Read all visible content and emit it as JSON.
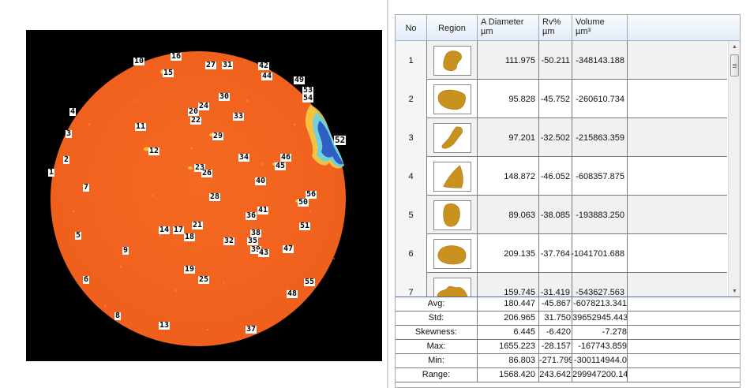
{
  "image_labels": [
    "1",
    "2",
    "3",
    "4",
    "5",
    "6",
    "7",
    "8",
    "9",
    "10",
    "11",
    "12",
    "13",
    "14",
    "15",
    "16",
    "17",
    "18",
    "19",
    "20",
    "21",
    "22",
    "23",
    "24",
    "25",
    "26",
    "27",
    "28",
    "29",
    "30",
    "31",
    "32",
    "33",
    "34",
    "35",
    "36",
    "37",
    "38",
    "39",
    "40",
    "41",
    "42",
    "43",
    "44",
    "45",
    "46",
    "47",
    "48",
    "49",
    "50",
    "51",
    "52",
    "53",
    "54",
    "55",
    "56"
  ],
  "table": {
    "headers": {
      "no": "No",
      "region": "Region",
      "diameter": "A Diameter",
      "diameter_unit": "µm",
      "rv": "Rv%",
      "rv_unit": "µm",
      "volume": "Volume",
      "volume_unit": "µm³"
    },
    "rows": [
      {
        "no": "1",
        "region_shape": "blob-1",
        "diameter": "111.975",
        "rv": "-50.211",
        "volume": "-348143.188"
      },
      {
        "no": "2",
        "region_shape": "blob-2",
        "diameter": "95.828",
        "rv": "-45.752",
        "volume": "-260610.734"
      },
      {
        "no": "3",
        "region_shape": "blob-3",
        "diameter": "97.201",
        "rv": "-32.502",
        "volume": "-215863.359"
      },
      {
        "no": "4",
        "region_shape": "blob-4",
        "diameter": "148.872",
        "rv": "-46.052",
        "volume": "-608357.875"
      },
      {
        "no": "5",
        "region_shape": "blob-5",
        "diameter": "89.063",
        "rv": "-38.085",
        "volume": "-193883.250"
      },
      {
        "no": "6",
        "region_shape": "blob-6",
        "diameter": "209.135",
        "rv": "-37.764",
        "volume": "-1041701.688"
      },
      {
        "no": "7",
        "region_shape": "blob-7",
        "diameter": "159.745",
        "rv": "-31.419",
        "volume": "-543627.563"
      }
    ],
    "stats": [
      {
        "label": "Avg:",
        "diameter": "180.447",
        "rv": "-45.867",
        "volume": "-6078213.341"
      },
      {
        "label": "Std:",
        "diameter": "206.965",
        "rv": "31.750",
        "volume": "39652945.443"
      },
      {
        "label": "Skewness:",
        "diameter": "6.445",
        "rv": "-6.420",
        "volume": "-7.278"
      },
      {
        "label": "Max:",
        "diameter": "1655.223",
        "rv": "-28.157",
        "volume": "-167743.859"
      },
      {
        "label": "Min:",
        "diameter": "86.803",
        "rv": "-271.799",
        "volume": "-300114944.0"
      },
      {
        "label": "Range:",
        "diameter": "1568.420",
        "rv": "243.642",
        "volume": "299947200.14"
      }
    ]
  },
  "colors": {
    "wafer_surface": "#f3641f",
    "defect_blue": "#2f5fc4",
    "defect_cyan": "#6fd3d8",
    "region_fill": "#c9921e"
  },
  "icons": {
    "scroll_up": "scroll-up-arrow-icon",
    "scroll_down": "scroll-down-arrow-icon"
  }
}
